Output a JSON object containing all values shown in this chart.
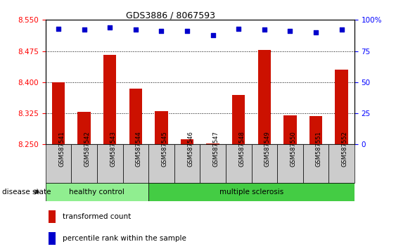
{
  "title": "GDS3886 / 8067593",
  "samples": [
    "GSM587541",
    "GSM587542",
    "GSM587543",
    "GSM587544",
    "GSM587545",
    "GSM587546",
    "GSM587547",
    "GSM587548",
    "GSM587549",
    "GSM587550",
    "GSM587551",
    "GSM587552"
  ],
  "bar_values": [
    8.4,
    8.328,
    8.465,
    8.385,
    8.33,
    8.263,
    8.253,
    8.37,
    8.478,
    8.32,
    8.318,
    8.43
  ],
  "percentile_values": [
    93,
    92,
    94,
    92,
    91,
    91,
    88,
    93,
    92,
    91,
    90,
    92
  ],
  "ylim_left": [
    8.25,
    8.55
  ],
  "ylim_right": [
    0,
    100
  ],
  "bar_color": "#cc1100",
  "dot_color": "#0000cc",
  "bg_color": "#ffffff",
  "tick_bg_color": "#d0d0d0",
  "healthy_color": "#90ee90",
  "ms_color": "#44cc44",
  "healthy_samples": 4,
  "total_samples": 12,
  "xlabel_disease": "disease state",
  "label1": "healthy control",
  "label2": "multiple sclerosis",
  "legend_bar_label": "transformed count",
  "legend_dot_label": "percentile rank within the sample",
  "yticks_left": [
    8.25,
    8.325,
    8.4,
    8.475,
    8.55
  ],
  "yticks_right": [
    0,
    25,
    50,
    75,
    100
  ]
}
